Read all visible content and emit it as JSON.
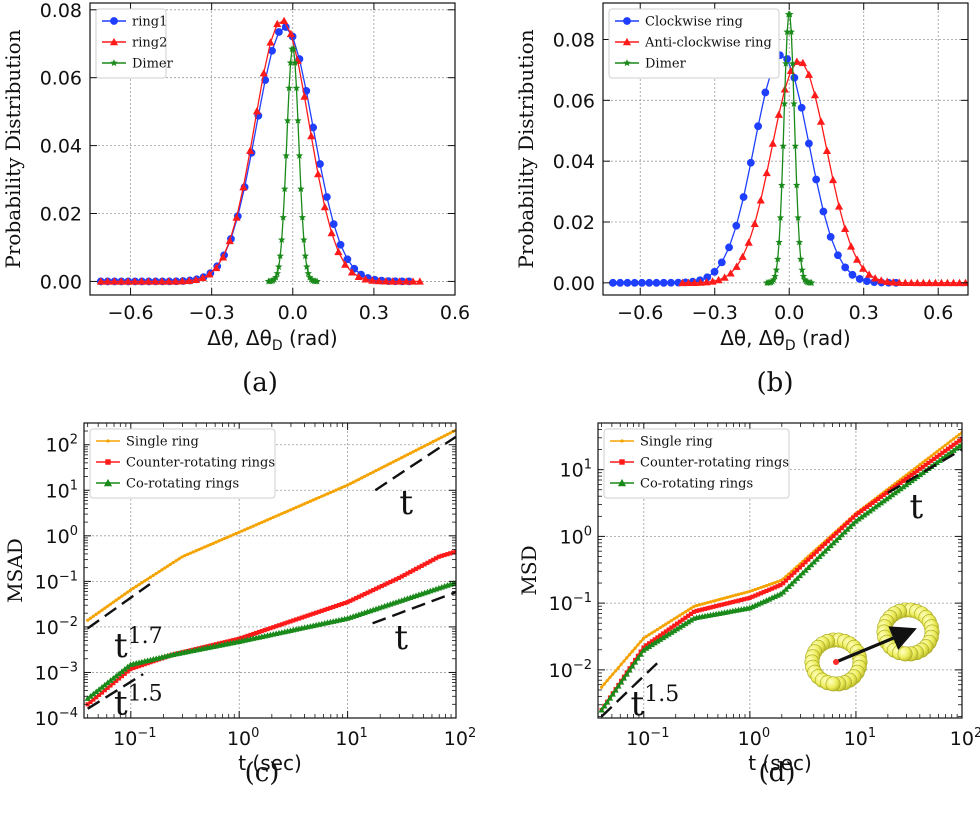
{
  "chart_data": [
    {
      "panel": "(a)",
      "type": "line",
      "xlabel": "Δθ, Δθ_D (rad)",
      "ylabel": "Probability Distribution",
      "xlim": [
        -0.75,
        0.6
      ],
      "ylim": [
        -0.004,
        0.082
      ],
      "xticks": [
        -0.6,
        -0.3,
        0.0,
        0.3,
        0.6
      ],
      "xtick_labels": [
        "−0.6",
        "−0.3",
        "0.0",
        "0.3",
        "0.6"
      ],
      "yticks": [
        0.0,
        0.02,
        0.04,
        0.06,
        0.08
      ],
      "ytick_labels": [
        "0.00",
        "0.02",
        "0.04",
        "0.06",
        "0.08"
      ],
      "grid": true,
      "legend_position": "top-left",
      "series": [
        {
          "name": "ring1",
          "color": "#1f3fff",
          "marker": "circle",
          "dist": "gauss",
          "mu": -0.03,
          "sigma": 0.105,
          "peak": 0.075,
          "xmin": -0.71,
          "xmax": 0.43,
          "n": 46
        },
        {
          "name": "ring2",
          "color": "#ff1a1a",
          "marker": "triangle",
          "dist": "gauss",
          "mu": -0.04,
          "sigma": 0.1,
          "peak": 0.077,
          "xmin": -0.71,
          "xmax": 0.47,
          "n": 48
        },
        {
          "name": "Dimer",
          "color": "#1a8a1a",
          "marker": "star",
          "dist": "gauss",
          "mu": 0.0,
          "sigma": 0.022,
          "peak": 0.069,
          "xmin": -0.09,
          "xmax": 0.09,
          "n": 34
        }
      ]
    },
    {
      "panel": "(b)",
      "type": "line",
      "xlabel": "Δθ, Δθ_D (rad)",
      "ylabel": "Probability Distribution",
      "xlim": [
        -0.75,
        0.72
      ],
      "ylim": [
        -0.004,
        0.092
      ],
      "xticks": [
        -0.6,
        -0.3,
        0.0,
        0.3,
        0.6
      ],
      "xtick_labels": [
        "−0.6",
        "−0.3",
        "0.0",
        "0.3",
        "0.6"
      ],
      "yticks": [
        0.0,
        0.02,
        0.04,
        0.06,
        0.08
      ],
      "ytick_labels": [
        "0.00",
        "0.02",
        "0.04",
        "0.06",
        "0.08"
      ],
      "grid": true,
      "legend_position": "top-left",
      "series": [
        {
          "name": "Clockwise ring",
          "color": "#1f3fff",
          "marker": "circle",
          "dist": "gauss",
          "mu": -0.03,
          "sigma": 0.11,
          "peak": 0.075,
          "xmin": -0.71,
          "xmax": 0.43,
          "n": 40
        },
        {
          "name": "Anti-clockwise ring",
          "color": "#ff1a1a",
          "marker": "triangle",
          "dist": "gauss",
          "mu": 0.04,
          "sigma": 0.11,
          "peak": 0.073,
          "xmin": -0.43,
          "xmax": 0.71,
          "n": 48
        },
        {
          "name": "Dimer",
          "color": "#1a8a1a",
          "marker": "star",
          "dist": "gauss",
          "mu": 0.0,
          "sigma": 0.021,
          "peak": 0.089,
          "xmin": -0.09,
          "xmax": 0.09,
          "n": 34
        }
      ]
    },
    {
      "panel": "(c)",
      "type": "line",
      "xlabel": "t (sec)",
      "ylabel": "MSAD",
      "xscale": "log",
      "yscale": "log",
      "xlim": [
        0.037,
        100
      ],
      "ylim": [
        0.0001,
        300
      ],
      "xticks": [
        0.1,
        1,
        10,
        100
      ],
      "xtick_labels": [
        [
          "10",
          "−1"
        ],
        [
          "10",
          "0"
        ],
        [
          "10",
          "1"
        ],
        [
          "10",
          "2"
        ]
      ],
      "yticks": [
        0.0001,
        0.001,
        0.01,
        0.1,
        1,
        10,
        100
      ],
      "ytick_labels": [
        [
          "10",
          "−4"
        ],
        [
          "10",
          "−3"
        ],
        [
          "10",
          "−2"
        ],
        [
          "10",
          "−1"
        ],
        [
          "10",
          "0"
        ],
        [
          "10",
          "1"
        ],
        [
          "10",
          "2"
        ]
      ],
      "grid": true,
      "legend_position": "top-left",
      "series": [
        {
          "name": "Single ring",
          "color": "#f5a300",
          "marker": "dot",
          "dist": "pts",
          "pts": [
            [
              0.04,
              0.014
            ],
            [
              0.1,
              0.065
            ],
            [
              0.3,
              0.35
            ],
            [
              1,
              1.2
            ],
            [
              10,
              13
            ],
            [
              100,
              210
            ]
          ],
          "n": 130,
          "lw": 2.2
        },
        {
          "name": "Counter-rotating rings",
          "color": "#ff1a1a",
          "marker": "square",
          "dist": "pts",
          "pts": [
            [
              0.04,
              0.0002
            ],
            [
              0.1,
              0.0012
            ],
            [
              0.25,
              0.0025
            ],
            [
              1,
              0.0055
            ],
            [
              10,
              0.035
            ],
            [
              30,
              0.12
            ],
            [
              70,
              0.35
            ],
            [
              100,
              0.45
            ]
          ],
          "n": 130,
          "lw": 2.2
        },
        {
          "name": "Co-rotating rings",
          "color": "#1a8a1a",
          "marker": "triangle",
          "dist": "pts",
          "pts": [
            [
              0.04,
              0.00027
            ],
            [
              0.1,
              0.0015
            ],
            [
              0.25,
              0.0025
            ],
            [
              1,
              0.0048
            ],
            [
              10,
              0.0155
            ],
            [
              100,
              0.095
            ]
          ],
          "n": 130,
          "lw": 2.2
        }
      ],
      "guides": [
        {
          "label": "t",
          "sup": "",
          "pts": [
            [
              18,
              10
            ],
            [
              100,
              150
            ]
          ],
          "text_at": [
            30,
            3
          ]
        },
        {
          "label": "t",
          "sup": "1.7",
          "pts": [
            [
              0.04,
              0.0093
            ],
            [
              0.15,
              0.087
            ]
          ],
          "text_at": [
            0.07,
            0.0022
          ]
        },
        {
          "label": "t",
          "sup": "",
          "pts": [
            [
              17,
              0.012
            ],
            [
              100,
              0.058
            ]
          ],
          "text_at": [
            27,
            0.0033
          ]
        },
        {
          "label": "t",
          "sup": "1.5",
          "pts": [
            [
              0.04,
              0.00016
            ],
            [
              0.13,
              0.00092
            ]
          ],
          "text_at": [
            0.07,
            0.00012
          ]
        }
      ]
    },
    {
      "panel": "(d)",
      "type": "line",
      "xlabel": "t (sec)",
      "ylabel": "MSD",
      "xscale": "log",
      "yscale": "log",
      "xlim": [
        0.037,
        100
      ],
      "ylim": [
        0.0019,
        50
      ],
      "xticks": [
        0.1,
        1,
        10,
        100
      ],
      "xtick_labels": [
        [
          "10",
          "−1"
        ],
        [
          "10",
          "0"
        ],
        [
          "10",
          "1"
        ],
        [
          "10",
          "2"
        ]
      ],
      "yticks": [
        0.01,
        0.1,
        1,
        10
      ],
      "ytick_labels": [
        [
          "10",
          "−2"
        ],
        [
          "10",
          "−1"
        ],
        [
          "10",
          "0"
        ],
        [
          "10",
          "1"
        ]
      ],
      "grid": true,
      "legend_position": "top-left",
      "series": [
        {
          "name": "Single ring",
          "color": "#f5a300",
          "marker": "dot",
          "dist": "pts",
          "pts": [
            [
              0.04,
              0.0055
            ],
            [
              0.1,
              0.03
            ],
            [
              0.3,
              0.09
            ],
            [
              1,
              0.15
            ],
            [
              2,
              0.22
            ],
            [
              10,
              2.2
            ],
            [
              100,
              36
            ]
          ],
          "n": 130,
          "lw": 2.2
        },
        {
          "name": "Counter-rotating rings",
          "color": "#ff1a1a",
          "marker": "square",
          "dist": "pts",
          "pts": [
            [
              0.04,
              0.0025
            ],
            [
              0.1,
              0.022
            ],
            [
              0.3,
              0.075
            ],
            [
              1,
              0.12
            ],
            [
              2,
              0.19
            ],
            [
              10,
              2.1
            ],
            [
              100,
              29
            ]
          ],
          "n": 130,
          "lw": 2.2
        },
        {
          "name": "Co-rotating rings",
          "color": "#1a8a1a",
          "marker": "triangle",
          "dist": "pts",
          "pts": [
            [
              0.04,
              0.0025
            ],
            [
              0.1,
              0.02
            ],
            [
              0.3,
              0.06
            ],
            [
              1,
              0.085
            ],
            [
              2,
              0.14
            ],
            [
              10,
              1.7
            ],
            [
              100,
              24
            ]
          ],
          "n": 130,
          "lw": 2.2
        }
      ],
      "guides": [
        {
          "label": "t",
          "sup": "",
          "pts": [
            [
              20,
              4.5
            ],
            [
              100,
              20
            ]
          ],
          "text_at": [
            32,
            1.9
          ]
        },
        {
          "label": "t",
          "sup": "1.5",
          "pts": [
            [
              0.04,
              0.002
            ],
            [
              0.14,
              0.0135
            ]
          ],
          "text_at": [
            0.075,
            0.0021
          ]
        }
      ]
    }
  ],
  "panel_labels": [
    "(a)",
    "(b)",
    "(c)",
    "(d)"
  ]
}
